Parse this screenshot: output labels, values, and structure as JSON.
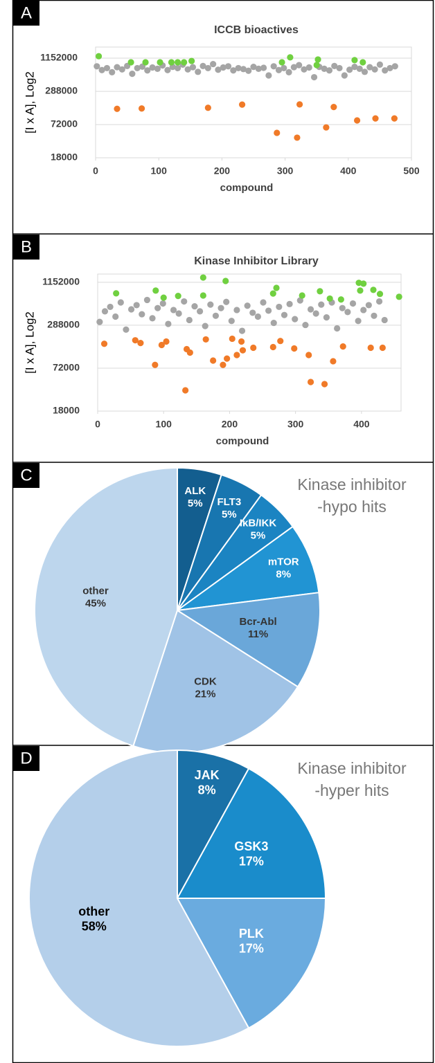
{
  "chart_data": [
    {
      "type": "scatter",
      "panel": "A",
      "title": "ICCB bioactives",
      "xlabel": "compound",
      "ylabel": "[I x A], Log2",
      "xlim": [
        0,
        500
      ],
      "xticks": [
        0,
        100,
        200,
        300,
        400,
        500
      ],
      "ylim": [
        18000,
        1830000
      ],
      "yticks": [
        18000,
        72000,
        288000,
        1152000
      ],
      "log_scale": "y",
      "log_base": 2,
      "grid": true,
      "series": [
        {
          "color": "#a5a5a5",
          "x": [
            2,
            10,
            18,
            26,
            34,
            42,
            50,
            58,
            66,
            74,
            82,
            90,
            98,
            106,
            114,
            122,
            130,
            138,
            146,
            154,
            162,
            170,
            178,
            186,
            194,
            202,
            210,
            218,
            226,
            234,
            242,
            250,
            258,
            266,
            274,
            282,
            290,
            298,
            306,
            314,
            322,
            330,
            338,
            346,
            354,
            362,
            370,
            378,
            386,
            394,
            402,
            410,
            418,
            426,
            434,
            442,
            450,
            458,
            466,
            474
          ],
          "values": [
            820000,
            700000,
            760000,
            640000,
            790000,
            720000,
            830000,
            600000,
            760000,
            810000,
            690000,
            780000,
            740000,
            850000,
            700000,
            800000,
            760000,
            880000,
            720000,
            790000,
            650000,
            830000,
            760000,
            900000,
            710000,
            780000,
            820000,
            690000,
            760000,
            730000,
            680000,
            800000,
            740000,
            770000,
            560000,
            820000,
            700000,
            760000,
            640000,
            790000,
            860000,
            720000,
            780000,
            520000,
            800000,
            740000,
            690000,
            830000,
            760000,
            560000,
            710000,
            800000,
            740000,
            650000,
            790000,
            720000,
            880000,
            690000,
            760000,
            820000
          ]
        },
        {
          "color": "#70d040",
          "x": [
            5,
            56,
            79,
            102,
            120,
            130,
            140,
            152,
            295,
            308,
            350,
            352,
            410,
            423
          ],
          "values": [
            1250000,
            969000,
            969000,
            969000,
            969000,
            969000,
            969000,
            1025000,
            969000,
            1190000,
            863000,
            1090000,
            1060000,
            969000
          ]
        },
        {
          "color": "#f07a28",
          "x": [
            34,
            73,
            178,
            232,
            287,
            319,
            323,
            365,
            377,
            414,
            443,
            473
          ],
          "values": [
            139000,
            141000,
            145000,
            166000,
            51000,
            41700,
            167000,
            64000,
            150000,
            85600,
            93000,
            93000
          ]
        }
      ]
    },
    {
      "type": "scatter",
      "panel": "B",
      "title": "Kinase Inhibitor Library",
      "xlabel": "compound",
      "ylabel": "[I x A], Log2",
      "xlim": [
        0,
        460
      ],
      "xticks": [
        0,
        100,
        200,
        300,
        400
      ],
      "ylim": [
        18000,
        1500000
      ],
      "yticks": [
        18000,
        72000,
        288000,
        1152000
      ],
      "log_scale": "y",
      "log_base": 2,
      "grid": true,
      "series": [
        {
          "color": "#a5a5a5",
          "x": [
            3,
            11,
            19,
            27,
            35,
            43,
            51,
            59,
            67,
            75,
            83,
            91,
            99,
            107,
            115,
            123,
            131,
            139,
            147,
            155,
            163,
            171,
            179,
            187,
            195,
            203,
            211,
            219,
            227,
            235,
            243,
            251,
            259,
            267,
            275,
            283,
            291,
            299,
            307,
            315,
            323,
            331,
            339,
            347,
            355,
            363,
            371,
            379,
            387,
            395,
            403,
            411,
            419,
            427,
            435
          ],
          "values": [
            320000,
            450000,
            520000,
            380000,
            600000,
            250000,
            480000,
            550000,
            410000,
            650000,
            360000,
            500000,
            580000,
            300000,
            470000,
            420000,
            620000,
            340000,
            530000,
            450000,
            280000,
            560000,
            390000,
            500000,
            610000,
            330000,
            470000,
            240000,
            540000,
            430000,
            380000,
            600000,
            460000,
            310000,
            520000,
            400000,
            570000,
            350000,
            640000,
            290000,
            480000,
            420000,
            560000,
            370000,
            600000,
            260000,
            500000,
            440000,
            580000,
            330000,
            470000,
            550000,
            390000,
            620000,
            340000
          ]
        },
        {
          "color": "#70d040",
          "x": [
            28,
            88,
            100,
            122,
            160,
            160,
            194,
            266,
            271,
            310,
            337,
            352,
            369,
            396,
            403,
            398,
            418,
            428,
            457
          ],
          "values": [
            805000,
            880000,
            700000,
            740000,
            1340000,
            750000,
            1200000,
            800000,
            960000,
            750000,
            860000,
            680000,
            660000,
            1130000,
            1100000,
            880000,
            900000,
            790000,
            720000
          ]
        },
        {
          "color": "#f07a28",
          "x": [
            10,
            57,
            65,
            87,
            97,
            104,
            135,
            140,
            164,
            133,
            175,
            190,
            196,
            204,
            218,
            220,
            211,
            236,
            266,
            277,
            298,
            320,
            323,
            344,
            357,
            372,
            414,
            432
          ],
          "values": [
            158000,
            177000,
            162000,
            80000,
            152000,
            170000,
            133000,
            119000,
            182000,
            35200,
            92000,
            80000,
            98000,
            186000,
            170000,
            128000,
            110000,
            139000,
            142000,
            173000,
            136000,
            110000,
            46000,
            43000,
            90000,
            145000,
            139000,
            139000
          ]
        }
      ]
    },
    {
      "type": "pie",
      "panel": "C",
      "title": [
        "Kinase inhibitor",
        "-hypo hits"
      ],
      "categories": [
        "ALK",
        "FLT3",
        "IκB/IKK",
        "mTOR",
        "Bcr-Abl",
        "CDK",
        "other"
      ],
      "values": [
        5,
        5,
        5,
        8,
        11,
        21,
        45
      ],
      "value_labels": [
        "5%",
        "5%",
        "5%",
        "8%",
        "11%",
        "21%",
        "45%"
      ],
      "colors": [
        "#135e8f",
        "#1876b0",
        "#1b84c2",
        "#2194d3",
        "#6aa7d9",
        "#a0c3e6",
        "#bdd6ed"
      ],
      "label_colors": [
        "#ffffff",
        "#ffffff",
        "#ffffff",
        "#ffffff",
        "#333333",
        "#333333",
        "#333333"
      ]
    },
    {
      "type": "pie",
      "panel": "D",
      "title": [
        "Kinase inhibitor",
        "-hyper hits"
      ],
      "categories": [
        "JAK",
        "GSK3",
        "PLK",
        "other"
      ],
      "values": [
        8,
        17,
        17,
        58
      ],
      "value_labels": [
        "8%",
        "17%",
        "17%",
        "58%"
      ],
      "colors": [
        "#1a71a7",
        "#1a8ccb",
        "#6aabdf",
        "#b4cfea"
      ],
      "label_colors": [
        "#ffffff",
        "#ffffff",
        "#ffffff",
        "#000000"
      ]
    }
  ]
}
